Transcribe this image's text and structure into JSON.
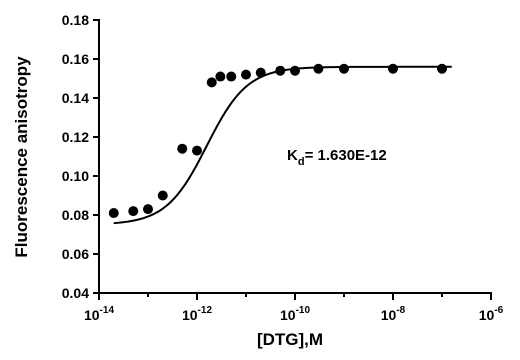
{
  "chart_data": {
    "type": "scatter",
    "title": "",
    "xlabel": "[DTG],M",
    "ylabel": "Fluorescence anisotropy",
    "x_scale": "log",
    "xlim": [
      1e-14,
      1e-06
    ],
    "ylim": [
      0.04,
      0.18
    ],
    "x_tick_exponents": [
      "-14",
      "-12",
      "-10",
      "-8",
      "-6"
    ],
    "x_tick_base": "10",
    "y_ticks": [
      "0.04",
      "0.06",
      "0.08",
      "0.10",
      "0.12",
      "0.14",
      "0.16",
      "0.18"
    ],
    "y_tick_values": [
      0.04,
      0.06,
      0.08,
      0.1,
      0.12,
      0.14,
      0.16,
      0.18
    ],
    "grid": false,
    "series": [
      {
        "kind": "points",
        "marker": "filled-circle",
        "x": [
          2e-14,
          5e-14,
          1e-13,
          2e-13,
          5e-13,
          1e-12,
          2e-12,
          3e-12,
          5e-12,
          1e-11,
          2e-11,
          5e-11,
          1e-10,
          3e-10,
          1e-09,
          1e-08,
          1e-07
        ],
        "y": [
          0.081,
          0.082,
          0.083,
          0.09,
          0.114,
          0.113,
          0.148,
          0.151,
          0.151,
          0.152,
          0.153,
          0.154,
          0.154,
          0.155,
          0.155,
          0.155,
          0.155
        ]
      },
      {
        "kind": "fit",
        "model": "sigmoid-log",
        "bottom": 0.075,
        "top": 0.156,
        "logEC50": -11.8,
        "hill": 1.05
      }
    ],
    "annotation": {
      "k_main": "K",
      "k_sub": "d",
      "value_text": "= 1.630E-12"
    },
    "colors": {
      "ink": "#000000",
      "background": "#ffffff"
    }
  }
}
